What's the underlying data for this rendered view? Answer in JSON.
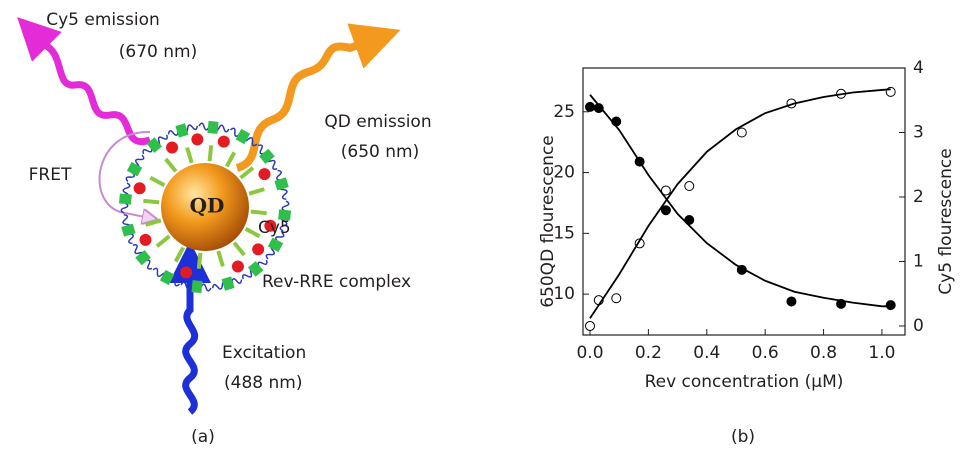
{
  "diagram": {
    "labels": [
      "Cy5 emission",
      "(670 nm)",
      "QD emission",
      "(650 nm)",
      "FRET",
      "QD",
      "Cy5",
      "Rev-RRE complex",
      "Excitation",
      "(488 nm)"
    ],
    "panel_label": "(a)"
  },
  "chart_data": {
    "type": "scatter",
    "panel_label": "(b)",
    "x_label": "Rev concentration (μM)",
    "y_label": "650QD flourescence",
    "y2_label": "Cy5 flourescence",
    "xlim": [
      -0.024,
      1.079
    ],
    "ylim": [
      6.64,
      28.6
    ],
    "y2lim": [
      -0.14,
      4
    ],
    "xticks": [
      {
        "value": 0,
        "label": "0.0"
      },
      {
        "value": 0.2,
        "label": "0.2"
      },
      {
        "value": 0.4,
        "label": "0.4"
      },
      {
        "value": 0.6,
        "label": "0.6"
      },
      {
        "value": 0.8,
        "label": "0.8"
      },
      {
        "value": 1,
        "label": "1.0"
      }
    ],
    "yticks": [
      10,
      15,
      20,
      25
    ],
    "y2ticks": [
      0,
      1,
      2,
      3,
      4
    ],
    "grid": false,
    "series": [
      {
        "mode": "markers",
        "fill": "black",
        "color": "#000000",
        "axis": "y",
        "x": [
          0.0,
          0.03,
          0.09,
          0.17,
          0.26,
          0.34,
          0.52,
          0.69,
          0.86,
          1.03
        ],
        "values": [
          25.4,
          25.3,
          24.2,
          20.9,
          16.9,
          16.1,
          12.0,
          9.4,
          9.2,
          9.1
        ]
      },
      {
        "mode": "markers",
        "fill": "none",
        "color": "#000000",
        "axis": "y2",
        "x": [
          0.0,
          0.03,
          0.09,
          0.17,
          0.26,
          0.34,
          0.52,
          0.69,
          0.86,
          1.03
        ],
        "values": [
          0.0,
          0.4,
          0.43,
          1.28,
          2.1,
          2.17,
          3.0,
          3.45,
          3.6,
          3.63
        ]
      },
      {
        "mode": "line",
        "color": "#000000",
        "axis": "y",
        "x": [
          0,
          0.1,
          0.2,
          0.3,
          0.4,
          0.5,
          0.6,
          0.7,
          0.8,
          0.9,
          1.0,
          1.03
        ],
        "values": [
          26.4,
          23.5,
          19.8,
          16.6,
          14.2,
          12.4,
          11.1,
          10.2,
          9.7,
          9.3,
          9.0,
          9.0
        ]
      },
      {
        "mode": "line",
        "color": "#000000",
        "axis": "y2",
        "x": [
          0,
          0.1,
          0.2,
          0.3,
          0.4,
          0.5,
          0.6,
          0.7,
          0.8,
          0.9,
          1.0,
          1.03
        ],
        "values": [
          0.12,
          0.8,
          1.55,
          2.2,
          2.7,
          3.05,
          3.3,
          3.45,
          3.55,
          3.62,
          3.66,
          3.67
        ]
      }
    ]
  }
}
